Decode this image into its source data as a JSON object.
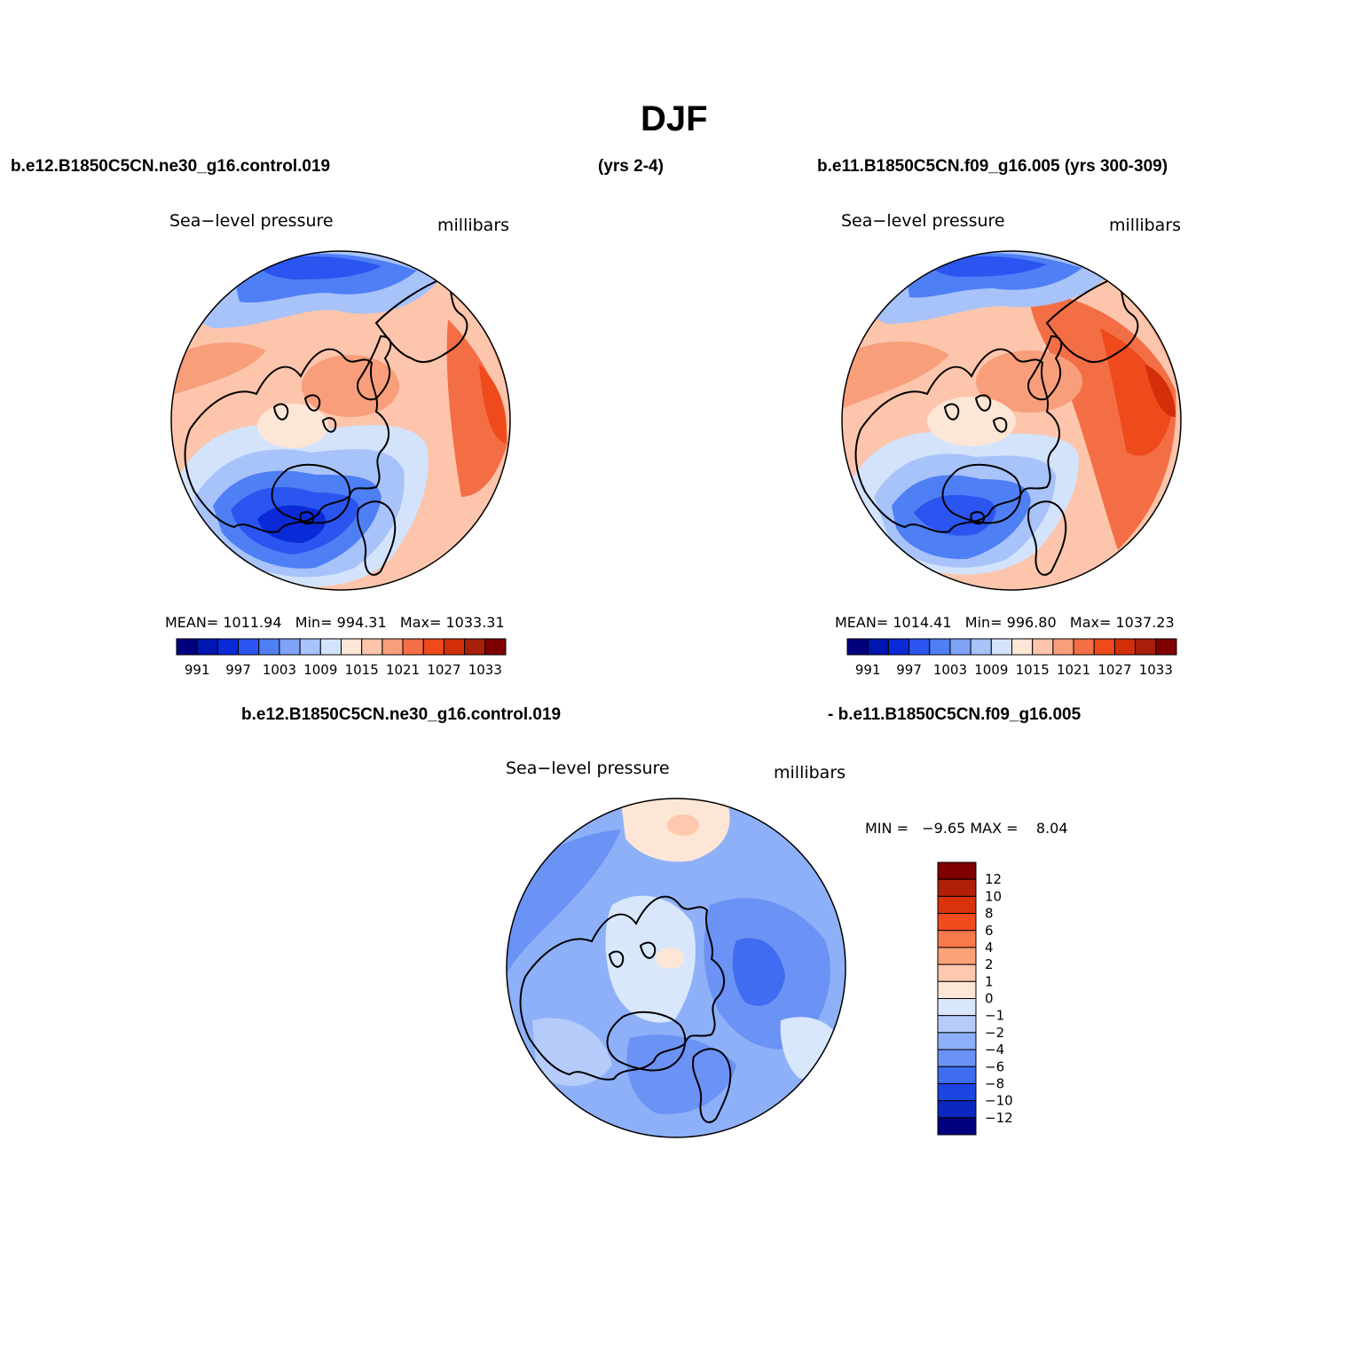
{
  "figure": {
    "title": "DJF",
    "case1": "b.e12.B1850C5CN.ne30_g16.control.019",
    "case1_years": "(yrs 2-4)",
    "case2": "b.e11.B1850C5CN.f09_g16.005 (yrs 300-309)",
    "diff_case1": "b.e12.B1850C5CN.ne30_g16.control.019",
    "diff_case2": "- b.e11.B1850C5CN.f09_g16.005"
  },
  "panels": [
    {
      "variable": "Sea−level pressure",
      "units": "millibars",
      "mean_label": "MEAN=",
      "mean": "1011.94",
      "min_label": "Min=",
      "min": "994.31",
      "max_label": "Max=",
      "max": "1033.31"
    },
    {
      "variable": "Sea−level pressure",
      "units": "millibars",
      "mean_label": "MEAN=",
      "mean": "1014.41",
      "min_label": "Min=",
      "min": "996.80",
      "max_label": "Max=",
      "max": "1037.23"
    },
    {
      "variable": "Sea−level pressure",
      "units": "millibars",
      "minmax_text": "MIN =   −9.65 MAX =    8.04"
    }
  ],
  "colorbar_abs": {
    "colors": [
      "#00007f",
      "#0016b0",
      "#0a2ad8",
      "#2a55f0",
      "#4f7ff5",
      "#7ea3f8",
      "#a8c2fa",
      "#d3e3fc",
      "#fde6d6",
      "#fcc5ac",
      "#f89e7a",
      "#f46e45",
      "#ee4a1c",
      "#d22e08",
      "#a8200a",
      "#7f0000"
    ],
    "labels": [
      "991",
      "997",
      "1003",
      "1009",
      "1015",
      "1021",
      "1027",
      "1033"
    ]
  },
  "colorbar_diff": {
    "colors": [
      "#7f0000",
      "#b02008",
      "#d8330a",
      "#f04d1e",
      "#f87a4a",
      "#fba27a",
      "#fdc8ad",
      "#fde6d6",
      "#d9e7fc",
      "#b5cbfa",
      "#8eb0f8",
      "#6b92f5",
      "#3f6cf0",
      "#1b45e2",
      "#0a28c0",
      "#00007f"
    ],
    "labels": [
      "12",
      "10",
      "8",
      "6",
      "4",
      "2",
      "1",
      "0",
      "−1",
      "−2",
      "−4",
      "−6",
      "−8",
      "−10",
      "−12"
    ]
  }
}
